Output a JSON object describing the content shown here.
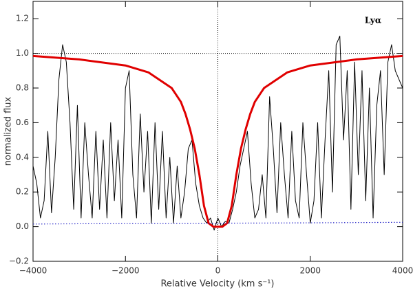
{
  "chart_data": {
    "type": "line",
    "title": "Lyα",
    "xlabel": "Relative Velocity (km s⁻¹)",
    "ylabel": "normalized flux",
    "xlim": [
      -4000,
      4000
    ],
    "ylim": [
      -0.2,
      1.3
    ],
    "xticks": [
      {
        "value": -4000,
        "label": "−4000"
      },
      {
        "value": -2000,
        "label": "−2000"
      },
      0,
      2000,
      4000
    ],
    "yticks": [
      {
        "value": -0.2,
        "label": "−0.2"
      },
      {
        "value": 0,
        "label": "0.0"
      },
      0.2,
      0.4,
      0.6,
      0.8,
      {
        "value": 1,
        "label": "1.0"
      },
      1.2
    ],
    "hlines": [
      1
    ],
    "vlines": [
      0
    ],
    "series": [
      {
        "color": "#000000",
        "style": "solid",
        "width": 1,
        "x": [
          -4000,
          -3920,
          -3840,
          -3760,
          -3680,
          -3600,
          -3520,
          -3440,
          -3360,
          -3280,
          -3200,
          -3120,
          -3040,
          -2960,
          -2880,
          -2800,
          -2720,
          -2640,
          -2560,
          -2480,
          -2400,
          -2320,
          -2240,
          -2160,
          -2080,
          -2000,
          -1920,
          -1840,
          -1760,
          -1680,
          -1600,
          -1520,
          -1440,
          -1360,
          -1280,
          -1200,
          -1120,
          -1040,
          -960,
          -880,
          -800,
          -720,
          -640,
          -560,
          -480,
          -400,
          -320,
          -240,
          -160,
          -80,
          0,
          80,
          160,
          240,
          320,
          400,
          480,
          560,
          640,
          720,
          800,
          880,
          960,
          1040,
          1120,
          1200,
          1280,
          1360,
          1440,
          1520,
          1600,
          1680,
          1760,
          1840,
          1920,
          2000,
          2080,
          2160,
          2240,
          2320,
          2400,
          2480,
          2560,
          2640,
          2720,
          2800,
          2880,
          2960,
          3040,
          3120,
          3200,
          3280,
          3360,
          3440,
          3520,
          3600,
          3680,
          3760,
          3840,
          3920,
          4000
        ],
        "values": [
          0.35,
          0.25,
          0.05,
          0.15,
          0.55,
          0.08,
          0.4,
          0.85,
          1.05,
          0.95,
          0.6,
          0.1,
          0.7,
          0.05,
          0.6,
          0.3,
          0.05,
          0.55,
          0.1,
          0.5,
          0.05,
          0.6,
          0.15,
          0.5,
          0.05,
          0.8,
          0.9,
          0.3,
          0.05,
          0.65,
          0.2,
          0.55,
          0.02,
          0.6,
          0.1,
          0.55,
          0.05,
          0.4,
          0.02,
          0.35,
          0.05,
          0.2,
          0.45,
          0.5,
          0.25,
          0.12,
          0.05,
          0.02,
          0.05,
          -0.02,
          0.05,
          0.0,
          0.03,
          0.02,
          0.1,
          0.2,
          0.35,
          0.45,
          0.55,
          0.25,
          0.05,
          0.1,
          0.3,
          0.05,
          0.75,
          0.45,
          0.08,
          0.6,
          0.3,
          0.05,
          0.55,
          0.15,
          0.05,
          0.6,
          0.3,
          0.02,
          0.15,
          0.6,
          0.05,
          0.5,
          0.9,
          0.2,
          1.05,
          1.1,
          0.5,
          0.9,
          0.1,
          0.95,
          0.3,
          0.9,
          0.15,
          0.8,
          0.05,
          0.7,
          0.9,
          0.3,
          0.95,
          1.05,
          0.9,
          0.85,
          0.8
        ]
      },
      {
        "color": "#e00000",
        "style": "solid",
        "width": 3,
        "x": [
          -4000,
          -3000,
          -2000,
          -1500,
          -1000,
          -800,
          -700,
          -600,
          -500,
          -400,
          -300,
          -200,
          -100,
          0,
          100,
          200,
          300,
          400,
          500,
          600,
          700,
          800,
          1000,
          1500,
          2000,
          3000,
          4000
        ],
        "values": [
          0.985,
          0.965,
          0.93,
          0.89,
          0.8,
          0.72,
          0.65,
          0.56,
          0.45,
          0.3,
          0.12,
          0.02,
          0,
          0,
          0,
          0.02,
          0.12,
          0.3,
          0.45,
          0.56,
          0.65,
          0.72,
          0.8,
          0.89,
          0.93,
          0.965,
          0.985
        ]
      },
      {
        "color": "#2b2bc8",
        "style": "dotted",
        "width": 1.2,
        "x": [
          -4000,
          -2000,
          0,
          2000,
          4000
        ],
        "values": [
          0.015,
          0.018,
          0.02,
          0.022,
          0.025
        ]
      }
    ]
  }
}
